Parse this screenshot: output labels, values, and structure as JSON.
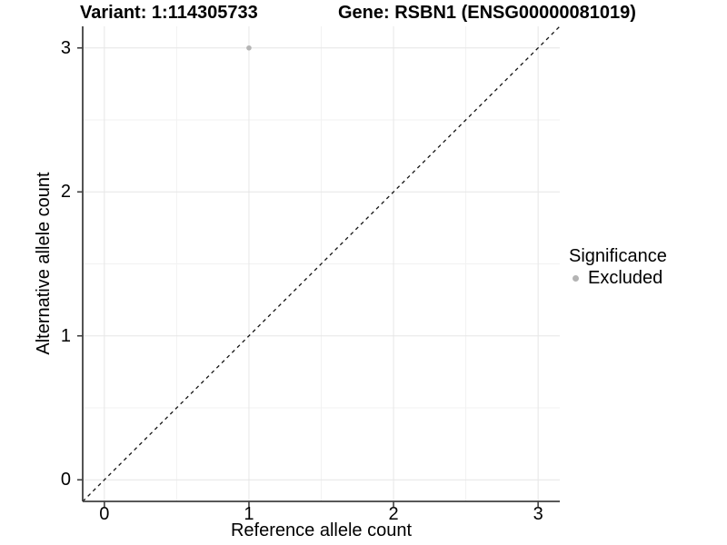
{
  "titles": {
    "variant": "Variant: 1:114305733",
    "gene": "Gene: RSBN1 (ENSG00000081019)"
  },
  "chart_data": {
    "type": "scatter",
    "title_left": "Variant: 1:114305733",
    "title_right": "Gene: RSBN1 (ENSG00000081019)",
    "xlabel": "Reference allele count",
    "ylabel": "Alternative allele count",
    "xlim": [
      -0.15,
      3.15
    ],
    "ylim": [
      -0.15,
      3.15
    ],
    "x_ticks": [
      0,
      1,
      2,
      3
    ],
    "y_ticks": [
      0,
      1,
      2,
      3
    ],
    "x_minor": [
      0.5,
      1.5,
      2.5
    ],
    "y_minor": [
      0.5,
      1.5,
      2.5
    ],
    "grid": "major+minor",
    "points": [
      {
        "x": 1,
        "y": 3,
        "series": "Excluded"
      }
    ],
    "reference_line": {
      "slope": 1,
      "intercept": 0,
      "style": "dashed"
    },
    "legend": {
      "title": "Significance",
      "position": "right",
      "entries": [
        {
          "label": "Excluded",
          "color": "#b4b4b4"
        }
      ]
    },
    "colors": {
      "point": "#b4b4b4",
      "grid_major": "#e6e6e6",
      "grid_minor": "#f2f2f2",
      "axis": "#404040",
      "reference_line": "#141414",
      "text": "#000000",
      "background": "#ffffff"
    }
  }
}
